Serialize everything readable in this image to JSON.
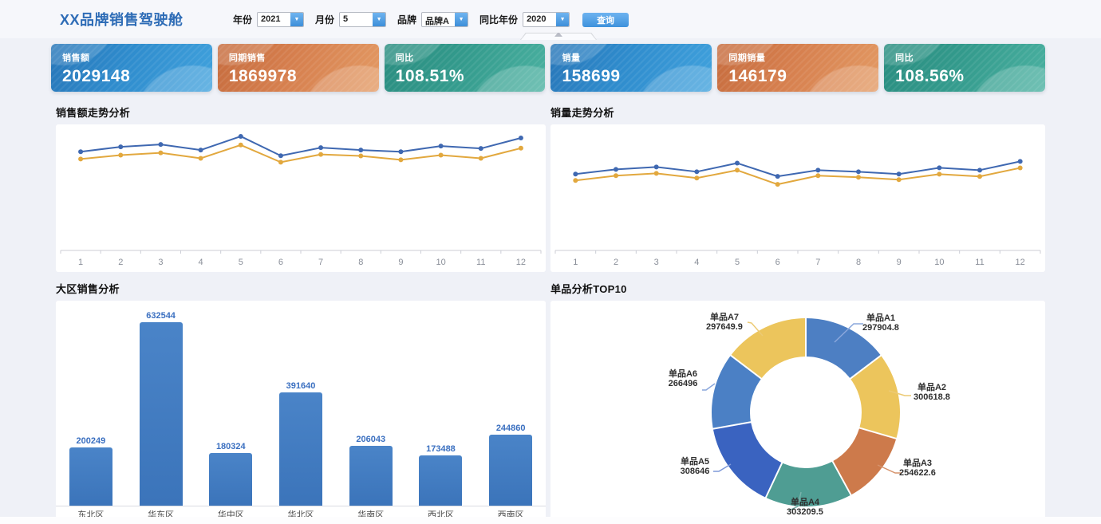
{
  "header": {
    "title": "XX品牌销售驾驶舱",
    "filters": [
      {
        "label": "年份",
        "value": "2021"
      },
      {
        "label": "月份",
        "value": "5"
      },
      {
        "label": "品牌",
        "value": "品牌A"
      },
      {
        "label": "同比年份",
        "value": "2020"
      }
    ],
    "query_button": "查询"
  },
  "kpi_cards": [
    {
      "label": "销售额",
      "value": "2029148",
      "theme": "blue"
    },
    {
      "label": "同期销售",
      "value": "1869978",
      "theme": "orange"
    },
    {
      "label": "同比",
      "value": "108.51%",
      "theme": "teal"
    },
    {
      "label": "销量",
      "value": "158699",
      "theme": "blue"
    },
    {
      "label": "同期销量",
      "value": "146179",
      "theme": "orange"
    },
    {
      "label": "同比",
      "value": "108.56%",
      "theme": "teal"
    }
  ],
  "colors": {
    "page_background": "#eff1f7",
    "accent_blue": "#3e92dc",
    "card_blue": "#2f8ccd",
    "card_orange": "#d67f4e",
    "card_teal": "#339a8c",
    "line_blue": "#3f68b1",
    "line_yellow": "#e2a83e",
    "bar_blue": "#4079be"
  },
  "chart_data": [
    {
      "type": "line",
      "title": "销售额走势分析",
      "x": [
        1,
        2,
        3,
        4,
        5,
        6,
        7,
        8,
        9,
        10,
        11,
        12
      ],
      "xlabel": "",
      "ylabel": "",
      "ylim": [
        0,
        200000
      ],
      "grid": false,
      "legend": "none",
      "series": [
        {
          "name": "series-blue",
          "color": "#3f68b1",
          "values": [
            161800,
            169800,
            173700,
            164500,
            187000,
            155200,
            168400,
            164500,
            161800,
            171100,
            167100,
            184300
          ]
        },
        {
          "name": "series-yellow",
          "color": "#e2a83e",
          "values": [
            149800,
            156200,
            160000,
            151000,
            172800,
            144600,
            157400,
            154900,
            148500,
            156200,
            151000,
            167600
          ]
        }
      ]
    },
    {
      "type": "line",
      "title": "销量走势分析",
      "x": [
        1,
        2,
        3,
        4,
        5,
        6,
        7,
        8,
        9,
        10,
        11,
        12
      ],
      "xlabel": "",
      "ylabel": "",
      "ylim": [
        0,
        20000
      ],
      "grid": false,
      "legend": "none",
      "series": [
        {
          "name": "series-blue",
          "color": "#3f68b1",
          "values": [
            12520,
            13290,
            13670,
            12900,
            14310,
            12140,
            13160,
            12900,
            12520,
            13540,
            13160,
            14590
          ]
        },
        {
          "name": "series-yellow",
          "color": "#e2a83e",
          "values": [
            11470,
            12250,
            12630,
            11860,
            13150,
            10830,
            12250,
            11990,
            11600,
            12500,
            12120,
            13530
          ]
        }
      ]
    },
    {
      "type": "bar",
      "title": "大区销售分析",
      "categories": [
        "东北区",
        "华东区",
        "华中区",
        "华北区",
        "华南区",
        "西北区",
        "西南区"
      ],
      "values": [
        200249,
        632544,
        180324,
        391640,
        206043,
        173488,
        244860
      ],
      "bar_color": "#4079be",
      "ylim": [
        0,
        700000
      ],
      "grid": false
    },
    {
      "type": "pie",
      "title": "单品分析TOP10",
      "slices": [
        {
          "name": "单品A1",
          "value": 297904.8,
          "color": "#4d7fc3"
        },
        {
          "name": "单品A2",
          "value": 300618.8,
          "color": "#ecc55c"
        },
        {
          "name": "单品A3",
          "value": 254622.6,
          "color": "#cd7a4b"
        },
        {
          "name": "单品A4",
          "value": 303209.5,
          "color": "#4f9d93"
        },
        {
          "name": "单品A5",
          "value": 308646,
          "color": "#3a63c0"
        },
        {
          "name": "单品A6",
          "value": 266496,
          "color": "#4b80c5"
        },
        {
          "name": "单品A7",
          "value": 297649.9,
          "color": "#ecc55c"
        }
      ],
      "inner_radius_ratio": 0.59,
      "start_angle_deg": 0,
      "direction": "clockwise"
    }
  ]
}
